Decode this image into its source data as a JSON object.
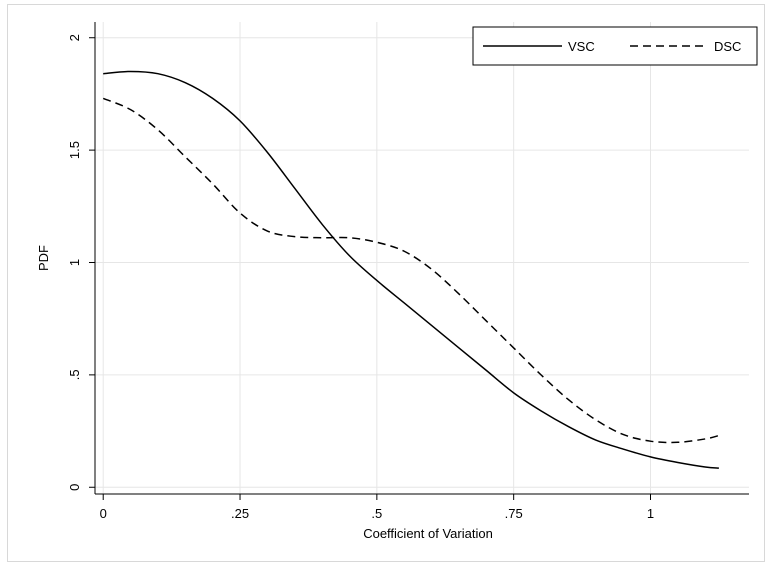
{
  "chart_data": {
    "type": "line",
    "title": "",
    "xlabel": "Coefficient of Variation",
    "ylabel": "PDF",
    "xlim": [
      -0.015,
      1.18
    ],
    "ylim": [
      -0.03,
      2.07
    ],
    "grid": true,
    "legend_position": "top-right",
    "x_ticks": [
      {
        "value": 0,
        "label": "0"
      },
      {
        "value": 0.25,
        "label": ".25"
      },
      {
        "value": 0.5,
        "label": ".5"
      },
      {
        "value": 0.75,
        "label": ".75"
      },
      {
        "value": 1,
        "label": "1"
      }
    ],
    "y_ticks": [
      {
        "value": 0,
        "label": "0"
      },
      {
        "value": 0.5,
        "label": ".5"
      },
      {
        "value": 1,
        "label": "1"
      },
      {
        "value": 1.5,
        "label": "1.5"
      },
      {
        "value": 2,
        "label": "2"
      }
    ],
    "series": [
      {
        "name": "VSC",
        "style": "solid",
        "color": "#000000",
        "x": [
          0,
          0.05,
          0.1,
          0.15,
          0.2,
          0.25,
          0.3,
          0.35,
          0.4,
          0.45,
          0.5,
          0.55,
          0.6,
          0.65,
          0.7,
          0.75,
          0.8,
          0.85,
          0.9,
          0.95,
          1.0,
          1.05,
          1.1,
          1.125
        ],
        "y": [
          1.84,
          1.85,
          1.84,
          1.8,
          1.73,
          1.63,
          1.49,
          1.33,
          1.17,
          1.03,
          0.92,
          0.82,
          0.72,
          0.62,
          0.52,
          0.42,
          0.34,
          0.27,
          0.21,
          0.17,
          0.135,
          0.11,
          0.09,
          0.085
        ]
      },
      {
        "name": "DSC",
        "style": "dashed",
        "color": "#000000",
        "x": [
          0,
          0.05,
          0.1,
          0.15,
          0.2,
          0.25,
          0.3,
          0.35,
          0.4,
          0.45,
          0.5,
          0.55,
          0.6,
          0.65,
          0.7,
          0.75,
          0.8,
          0.85,
          0.9,
          0.95,
          1.0,
          1.05,
          1.1,
          1.125
        ],
        "y": [
          1.73,
          1.68,
          1.59,
          1.47,
          1.35,
          1.22,
          1.14,
          1.115,
          1.11,
          1.11,
          1.09,
          1.05,
          0.97,
          0.86,
          0.74,
          0.62,
          0.5,
          0.39,
          0.3,
          0.235,
          0.205,
          0.2,
          0.215,
          0.23
        ]
      }
    ]
  }
}
